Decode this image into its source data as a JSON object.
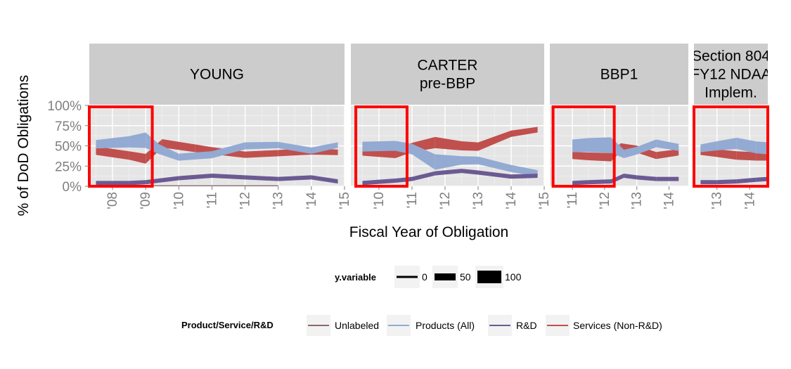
{
  "chart_data": {
    "type": "line",
    "xlabel": "Fiscal Year of Obligation",
    "ylabel": "% of DoD Obligations",
    "y_ticks": [
      "0%",
      "25%",
      "50%",
      "75%",
      "100%"
    ],
    "ylim": [
      0,
      1
    ],
    "grid": true,
    "colors": {
      "Unlabeled": "#8c6b6b",
      "Products (All)": "#93aad3",
      "R&D": "#6b5a92",
      "Services (Non-R&D)": "#c0504d",
      "highlight": "#ff0000",
      "strip": "#cccccc",
      "panel": "#e5e5e5"
    },
    "size_legend": {
      "title": "y.variable",
      "labels": [
        "0",
        "50",
        "100"
      ],
      "values": [
        0,
        50,
        100
      ]
    },
    "color_legend": {
      "title": "Product/Service/R&D",
      "labels": [
        "Unlabeled",
        "Products (All)",
        "R&D",
        "Services (Non-R&D)"
      ]
    },
    "panels": [
      {
        "strip": [
          "YOUNG"
        ],
        "x_ticks": [
          "'08",
          "'09",
          "'10",
          "'11",
          "'12",
          "'13",
          "'14",
          "'15"
        ],
        "xlim": [
          2007.3,
          2015.0
        ],
        "highlight": [
          2007.3,
          2009.2
        ],
        "series": [
          {
            "name": "Services (Non-R&D)",
            "x": [
              2007.5,
              2008.5,
              2009.0,
              2009.5,
              2010.5,
              2011.0,
              2012.0,
              2013.0,
              2014.0,
              2014.8
            ],
            "y": [
              0.44,
              0.38,
              0.34,
              0.53,
              0.47,
              0.44,
              0.39,
              0.41,
              0.43,
              0.42
            ],
            "w": [
              12,
              12,
              14,
              12,
              11,
              10,
              9,
              9,
              9,
              8
            ]
          },
          {
            "name": "Products (All)",
            "x": [
              2007.5,
              2008.5,
              2009.0,
              2009.4,
              2010.0,
              2011.0,
              2012.0,
              2013.0,
              2014.0,
              2014.8
            ],
            "y": [
              0.52,
              0.55,
              0.57,
              0.46,
              0.36,
              0.39,
              0.5,
              0.51,
              0.44,
              0.51
            ],
            "w": [
              12,
              16,
              22,
              14,
              10,
              10,
              10,
              9,
              9,
              8
            ]
          },
          {
            "name": "R&D",
            "x": [
              2007.5,
              2008.5,
              2009.0,
              2010.0,
              2011.0,
              2012.0,
              2013.0,
              2014.0,
              2014.8
            ],
            "y": [
              0.04,
              0.04,
              0.05,
              0.1,
              0.13,
              0.11,
              0.09,
              0.11,
              0.06
            ],
            "w": [
              6,
              6,
              6,
              6,
              6,
              6,
              6,
              6,
              6
            ]
          },
          {
            "name": "Unlabeled",
            "x": [
              2009.0,
              2010.0,
              2011.0,
              2012.0,
              2013.0
            ],
            "y": [
              0.003,
              0.003,
              0.003,
              0.003,
              0.003
            ],
            "w": [
              2,
              2,
              2,
              2,
              2
            ]
          }
        ]
      },
      {
        "strip": [
          "CARTER",
          "pre-BBP"
        ],
        "x_ticks": [
          "'10",
          "'11",
          "'12",
          "'13",
          "'14",
          "'15"
        ],
        "xlim": [
          2009.15,
          2015.0
        ],
        "highlight": [
          2009.3,
          2010.85
        ],
        "series": [
          {
            "name": "Services (Non-R&D)",
            "x": [
              2009.5,
              2010.5,
              2011.0,
              2011.7,
              2012.5,
              2013.0,
              2014.0,
              2014.8
            ],
            "y": [
              0.43,
              0.4,
              0.48,
              0.54,
              0.5,
              0.49,
              0.65,
              0.7
            ],
            "w": [
              12,
              12,
              13,
              16,
              13,
              12,
              9,
              8
            ]
          },
          {
            "name": "Products (All)",
            "x": [
              2009.5,
              2010.5,
              2011.0,
              2011.7,
              2012.5,
              2013.0,
              2014.0,
              2014.8
            ],
            "y": [
              0.49,
              0.5,
              0.46,
              0.3,
              0.32,
              0.32,
              0.22,
              0.16
            ],
            "w": [
              14,
              14,
              15,
              22,
              12,
              11,
              10,
              9
            ]
          },
          {
            "name": "R&D",
            "x": [
              2009.5,
              2010.5,
              2011.0,
              2011.7,
              2012.5,
              2013.0,
              2014.0,
              2014.8
            ],
            "y": [
              0.04,
              0.07,
              0.09,
              0.16,
              0.19,
              0.17,
              0.12,
              0.13
            ],
            "w": [
              6,
              6,
              6,
              6,
              6,
              6,
              6,
              6
            ]
          }
        ]
      },
      {
        "strip": [
          "BBP1"
        ],
        "x_ticks": [
          "'11",
          "'12",
          "'13",
          "'14"
        ],
        "xlim": [
          2010.3,
          2014.6
        ],
        "highlight": [
          2010.4,
          2012.3
        ],
        "series": [
          {
            "name": "Services (Non-R&D)",
            "x": [
              2011.0,
              2011.5,
              2012.2,
              2012.5,
              2013.0,
              2013.6,
              2014.3
            ],
            "y": [
              0.38,
              0.37,
              0.36,
              0.48,
              0.46,
              0.38,
              0.42
            ],
            "w": [
              10,
              11,
              12,
              12,
              10,
              10,
              9
            ]
          },
          {
            "name": "Products (All)",
            "x": [
              2011.0,
              2011.5,
              2012.2,
              2012.6,
              2013.0,
              2013.6,
              2014.3
            ],
            "y": [
              0.5,
              0.51,
              0.51,
              0.4,
              0.44,
              0.53,
              0.48
            ],
            "w": [
              18,
              20,
              22,
              12,
              11,
              11,
              10
            ]
          },
          {
            "name": "R&D",
            "x": [
              2011.0,
              2011.5,
              2012.2,
              2012.6,
              2013.0,
              2013.6,
              2014.3
            ],
            "y": [
              0.04,
              0.05,
              0.06,
              0.13,
              0.11,
              0.09,
              0.09
            ],
            "w": [
              6,
              6,
              6,
              6,
              6,
              6,
              6
            ]
          }
        ]
      },
      {
        "strip": [
          "Section 804",
          "FY12 NDAA",
          "Implem."
        ],
        "x_ticks": [
          "'13",
          "'14"
        ],
        "xlim": [
          2012.3,
          2014.55
        ],
        "highlight": [
          2012.3,
          2014.55
        ],
        "series": [
          {
            "name": "Services (Non-R&D)",
            "x": [
              2012.5,
              2013.0,
              2013.6,
              2014.2,
              2014.55
            ],
            "y": [
              0.43,
              0.41,
              0.38,
              0.37,
              0.37
            ],
            "w": [
              10,
              11,
              12,
              12,
              12
            ]
          },
          {
            "name": "Products (All)",
            "x": [
              2012.5,
              2013.0,
              2013.6,
              2014.2,
              2014.55
            ],
            "y": [
              0.47,
              0.5,
              0.53,
              0.48,
              0.47
            ],
            "w": [
              11,
              13,
              16,
              17,
              17
            ]
          },
          {
            "name": "R&D",
            "x": [
              2012.5,
              2013.0,
              2013.6,
              2014.2,
              2014.55
            ],
            "y": [
              0.05,
              0.05,
              0.06,
              0.08,
              0.09
            ],
            "w": [
              6,
              6,
              6,
              6,
              6
            ]
          }
        ]
      }
    ]
  }
}
